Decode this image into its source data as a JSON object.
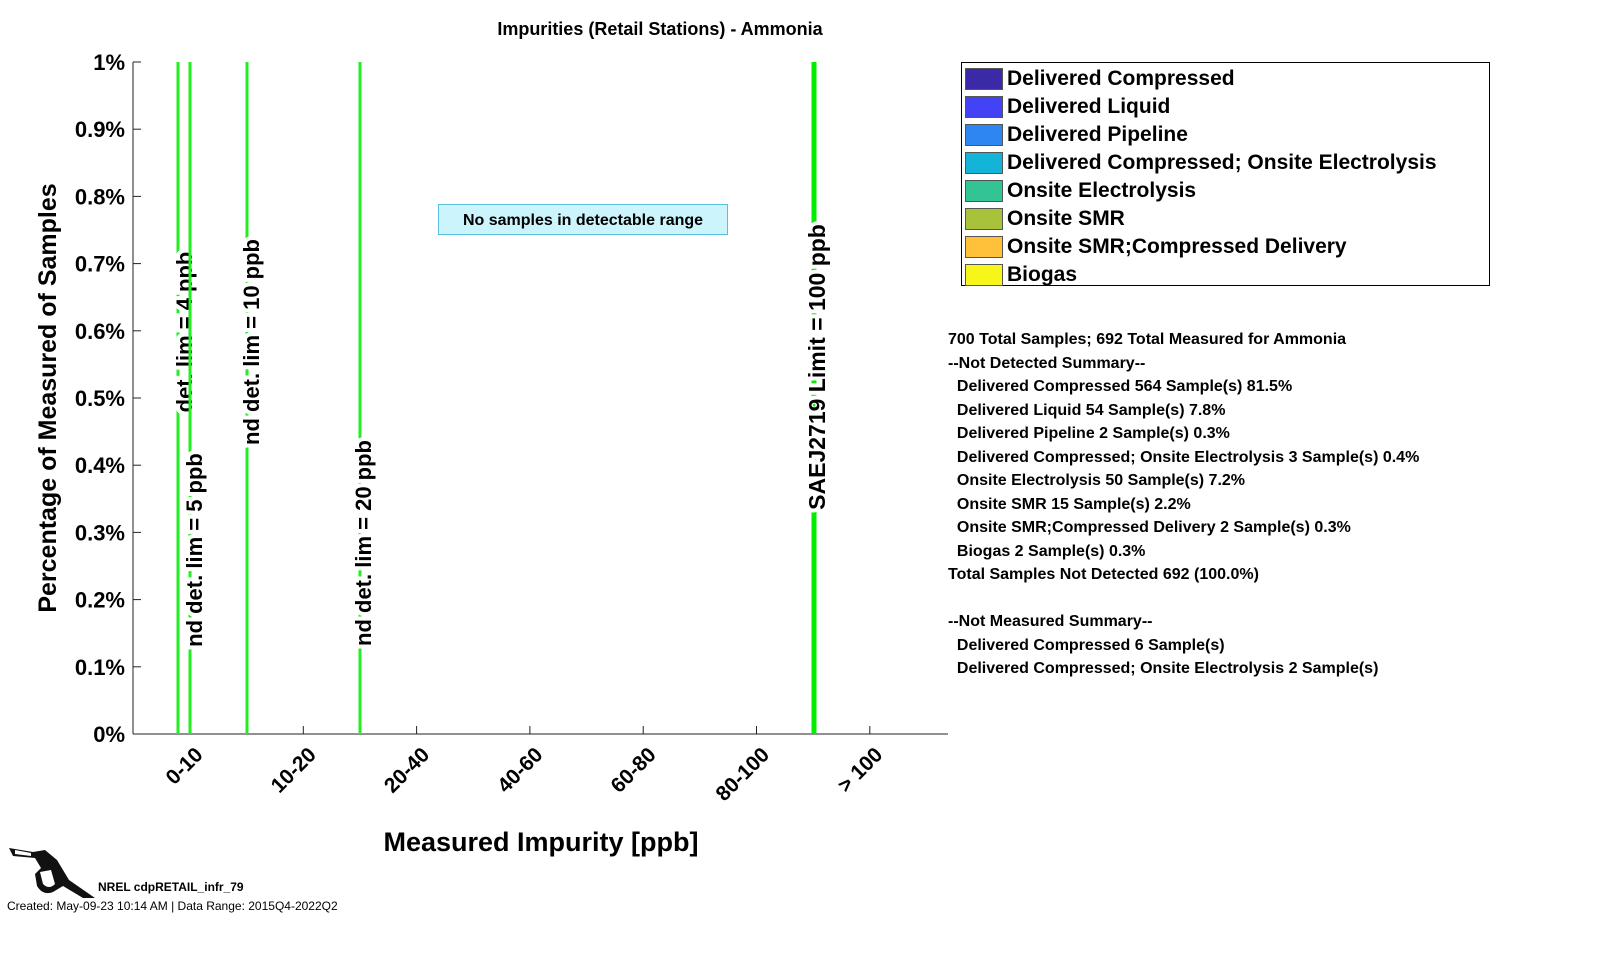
{
  "chart_data": {
    "type": "bar",
    "title": "Impurities (Retail Stations) - Ammonia",
    "xlabel": "Measured Impurity [ppb]",
    "ylabel": "Percentage of Measured of Samples",
    "categories": [
      "0-10",
      "10-20",
      "20-40",
      "40-60",
      "60-80",
      "80-100",
      "> 100"
    ],
    "yticks": [
      "0%",
      "0.1%",
      "0.2%",
      "0.3%",
      "0.4%",
      "0.5%",
      "0.6%",
      "0.7%",
      "0.8%",
      "0.9%",
      "1%"
    ],
    "ylim": [
      0,
      1
    ],
    "series": [],
    "annotation": "No samples in detectable range",
    "reference_lines": [
      {
        "label": "det. lim = 4 ppb",
        "pos": 0.4,
        "color": "#22ee22"
      },
      {
        "label": "nd det. lim = 5 ppb",
        "pos": 0.5,
        "color": "#22ee22"
      },
      {
        "label": "nd det. lim = 10 ppb",
        "pos": 1.0,
        "color": "#22ee22"
      },
      {
        "label": "nd det. lim = 20 ppb",
        "pos": 2.0,
        "color": "#22ee22"
      },
      {
        "label": "SAEJ2719 Limit = 100 ppb",
        "pos": 6.0,
        "color": "#00ee00"
      }
    ],
    "legend_position": "right",
    "legend": [
      {
        "name": "Delivered Compressed",
        "color": "#3b2aa8"
      },
      {
        "name": "Delivered Liquid",
        "color": "#4343f5"
      },
      {
        "name": "Delivered Pipeline",
        "color": "#2d86f2"
      },
      {
        "name": "Delivered Compressed; Onsite Electrolysis",
        "color": "#14b4d8"
      },
      {
        "name": "Onsite Electrolysis",
        "color": "#33c395"
      },
      {
        "name": "Onsite SMR",
        "color": "#a8c23c"
      },
      {
        "name": "Onsite SMR;Compressed Delivery",
        "color": "#ffc03a"
      },
      {
        "name": "Biogas",
        "color": "#f6f61a"
      }
    ]
  },
  "summary": [
    "700 Total Samples; 692 Total Measured for Ammonia",
    "--Not Detected Summary--",
    "  Delivered Compressed 564 Sample(s) 81.5%",
    "  Delivered Liquid 54 Sample(s) 7.8%",
    "  Delivered Pipeline 2 Sample(s) 0.3%",
    "  Delivered Compressed; Onsite Electrolysis 3 Sample(s) 0.4%",
    "  Onsite Electrolysis 50 Sample(s) 7.2%",
    "  Onsite SMR 15 Sample(s) 2.2%",
    "  Onsite SMR;Compressed Delivery 2 Sample(s) 0.3%",
    "  Biogas 2 Sample(s) 0.3%",
    "Total Samples Not Detected 692 (100.0%)",
    "",
    "--Not Measured Summary--",
    "  Delivered Compressed 6 Sample(s)",
    "  Delivered Compressed; Onsite Electrolysis 2 Sample(s)"
  ],
  "footer": {
    "id": "NREL cdpRETAIL_infr_79",
    "created": "Created: May-09-23 10:14 AM | Data Range: 2015Q4-2022Q2"
  }
}
